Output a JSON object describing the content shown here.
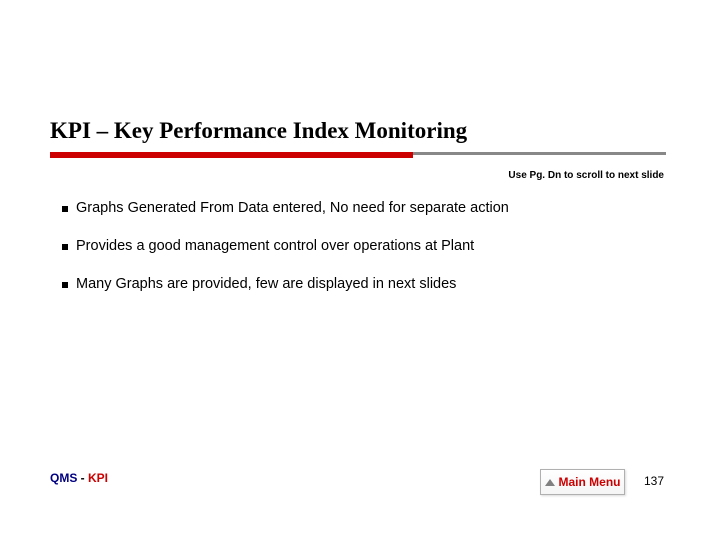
{
  "title": "KPI – Key Performance Index Monitoring",
  "hint": "Use Pg. Dn to scroll to next slide",
  "bullets": [
    "Graphs Generated From Data entered, No need for separate action",
    "Provides a good management control over operations at Plant",
    "Many Graphs are provided, few are displayed in next slides"
  ],
  "footer": {
    "qms": "QMS",
    "dash": " - ",
    "kpi": "KPI"
  },
  "mainMenu": "Main Menu",
  "pageNum": "137",
  "colors": {
    "ruleRed": "#cc0000",
    "ruleGrey": "#888888",
    "footerNavy": "#000080",
    "footerRed": "#cc0000",
    "menuRed": "#cc0000"
  }
}
